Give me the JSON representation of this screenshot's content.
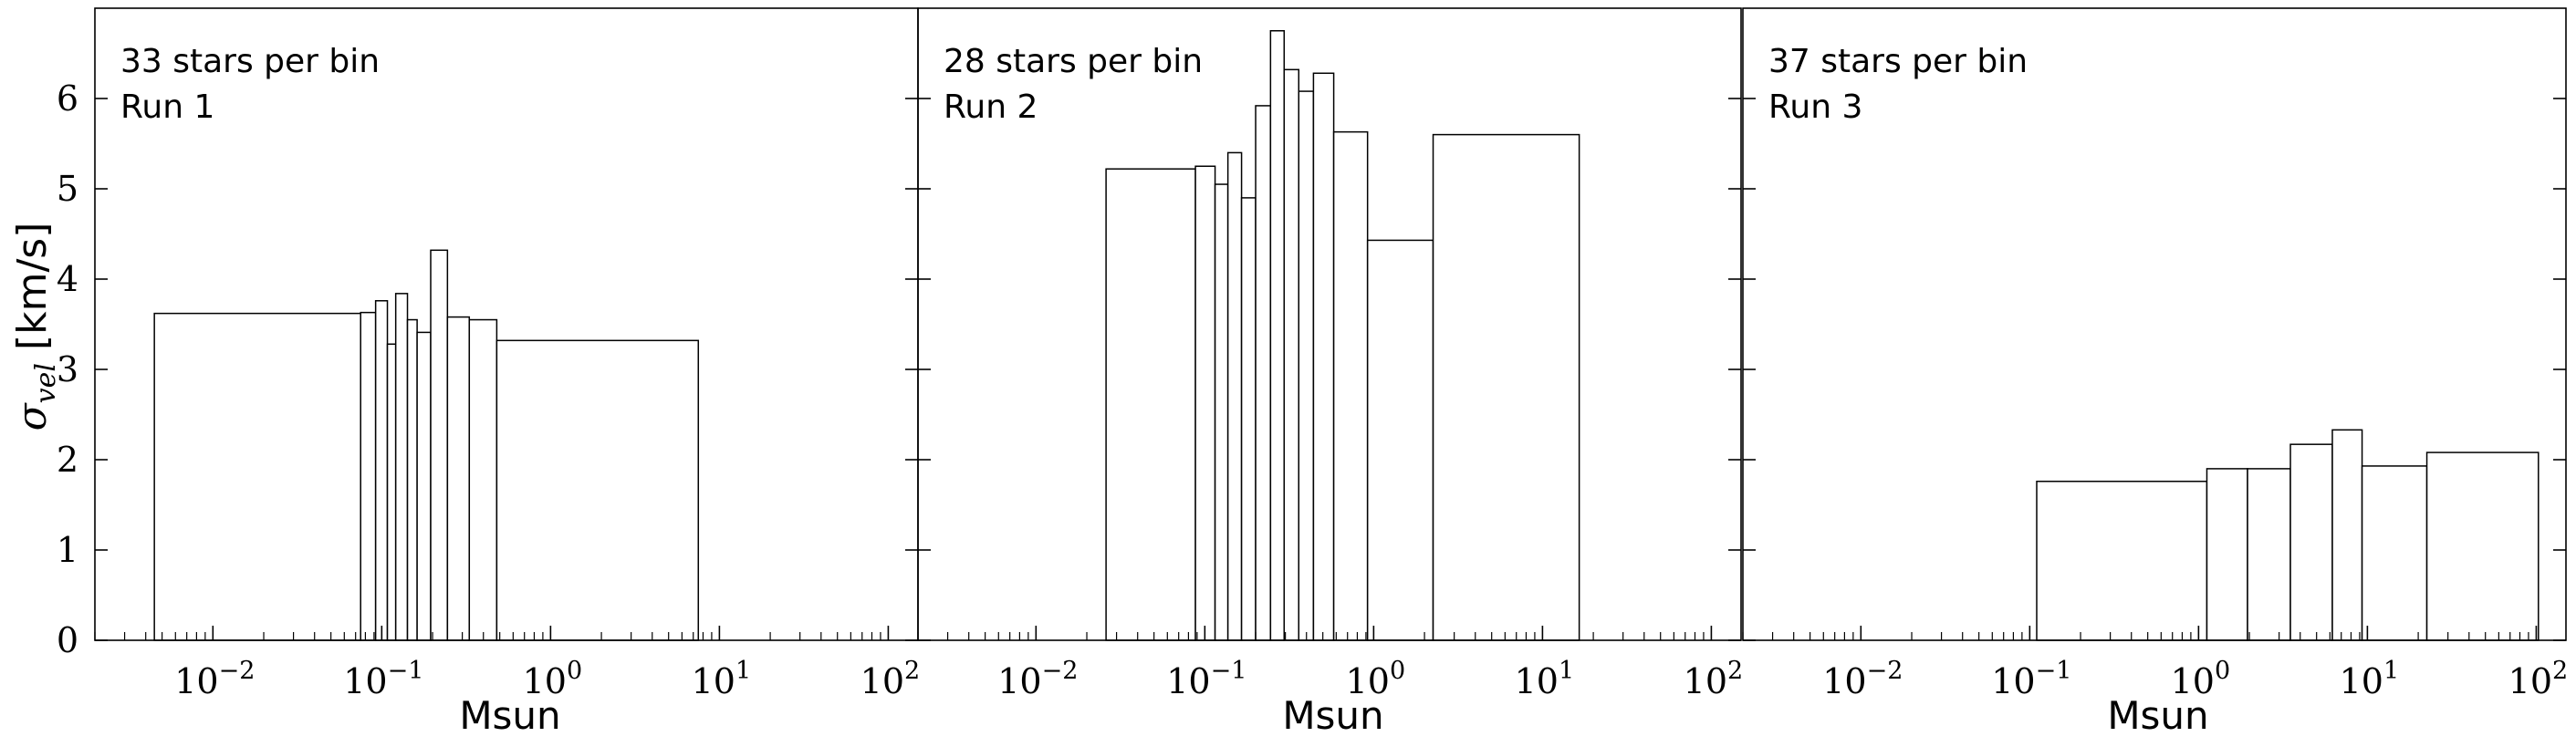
{
  "chart_data": {
    "type": "bar",
    "xscale": "log",
    "xlim": [
      0.002,
      150
    ],
    "ylim": [
      0,
      7
    ],
    "ylabel": "σvel [km/s]",
    "ylabel_sub": "vel",
    "yticks": [
      0,
      1,
      2,
      3,
      4,
      5,
      6
    ],
    "xticks": [
      {
        "base": "10",
        "exp": "−2",
        "value": 0.01
      },
      {
        "base": "10",
        "exp": "−1",
        "value": 0.1
      },
      {
        "base": "10",
        "exp": "0",
        "value": 1
      },
      {
        "base": "10",
        "exp": "1",
        "value": 10
      },
      {
        "base": "10",
        "exp": "2",
        "value": 100
      }
    ],
    "panels": [
      {
        "annotation": [
          "33 stars per bin",
          "Run 1"
        ],
        "xlabel": "Msun",
        "bins": [
          {
            "x0": 0.0045,
            "x1": 0.075,
            "y": 3.62
          },
          {
            "x0": 0.075,
            "x1": 0.092,
            "y": 3.63
          },
          {
            "x0": 0.092,
            "x1": 0.108,
            "y": 3.76
          },
          {
            "x0": 0.108,
            "x1": 0.121,
            "y": 3.28
          },
          {
            "x0": 0.121,
            "x1": 0.142,
            "y": 3.84
          },
          {
            "x0": 0.142,
            "x1": 0.162,
            "y": 3.55
          },
          {
            "x0": 0.162,
            "x1": 0.195,
            "y": 3.41
          },
          {
            "x0": 0.195,
            "x1": 0.245,
            "y": 4.32
          },
          {
            "x0": 0.245,
            "x1": 0.33,
            "y": 3.58
          },
          {
            "x0": 0.33,
            "x1": 0.48,
            "y": 3.55
          },
          {
            "x0": 0.48,
            "x1": 7.5,
            "y": 3.32
          }
        ]
      },
      {
        "annotation": [
          "28 stars per bin",
          "Run 2"
        ],
        "xlabel": "Msun",
        "bins": [
          {
            "x0": 0.026,
            "x1": 0.088,
            "y": 5.22
          },
          {
            "x0": 0.088,
            "x1": 0.115,
            "y": 5.25
          },
          {
            "x0": 0.115,
            "x1": 0.137,
            "y": 5.05
          },
          {
            "x0": 0.137,
            "x1": 0.165,
            "y": 5.4
          },
          {
            "x0": 0.165,
            "x1": 0.2,
            "y": 4.9
          },
          {
            "x0": 0.2,
            "x1": 0.245,
            "y": 5.92
          },
          {
            "x0": 0.245,
            "x1": 0.295,
            "y": 6.75
          },
          {
            "x0": 0.295,
            "x1": 0.36,
            "y": 6.32
          },
          {
            "x0": 0.36,
            "x1": 0.44,
            "y": 6.08
          },
          {
            "x0": 0.44,
            "x1": 0.58,
            "y": 6.28
          },
          {
            "x0": 0.58,
            "x1": 0.92,
            "y": 5.63
          },
          {
            "x0": 0.92,
            "x1": 2.25,
            "y": 4.43
          },
          {
            "x0": 2.25,
            "x1": 16.5,
            "y": 5.6
          }
        ]
      },
      {
        "annotation": [
          "37 stars per bin",
          "Run 3"
        ],
        "xlabel": "Msun",
        "bins": [
          {
            "x0": 0.11,
            "x1": 1.12,
            "y": 1.76
          },
          {
            "x0": 1.12,
            "x1": 1.95,
            "y": 1.9
          },
          {
            "x0": 1.95,
            "x1": 3.5,
            "y": 1.9
          },
          {
            "x0": 3.5,
            "x1": 6.2,
            "y": 2.17
          },
          {
            "x0": 6.2,
            "x1": 9.3,
            "y": 2.33
          },
          {
            "x0": 9.3,
            "x1": 22.5,
            "y": 1.93
          },
          {
            "x0": 22.5,
            "x1": 103,
            "y": 2.08
          }
        ]
      }
    ]
  }
}
